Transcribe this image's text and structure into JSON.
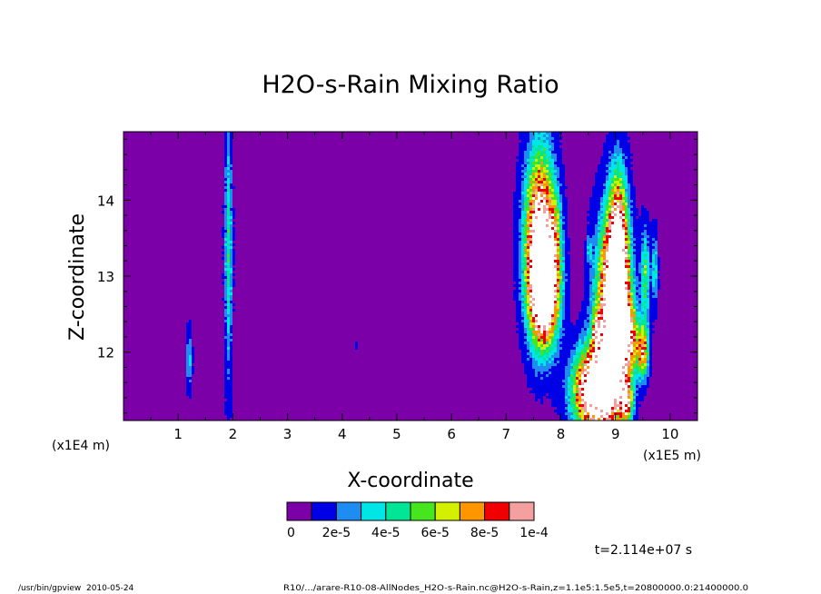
{
  "chart_data": {
    "type": "heatmap",
    "title": "H2O-s-Rain Mixing Ratio",
    "xlabel": "X-coordinate",
    "ylabel": "Z-coordinate",
    "x_unit": "(x1E5 m)",
    "y_unit": "(x1E4 m)",
    "x_ticks": [
      "1",
      "2",
      "3",
      "4",
      "5",
      "6",
      "7",
      "8",
      "9",
      "10"
    ],
    "y_ticks": [
      "12",
      "13",
      "14"
    ],
    "xlim": [
      0,
      10.5
    ],
    "ylim": [
      11.1,
      14.9
    ],
    "background_value": 0,
    "colorbar": {
      "colors": [
        "#7b00a8",
        "#0000e6",
        "#1e8cf0",
        "#00e6e6",
        "#00e696",
        "#46e61e",
        "#d2f000",
        "#ff9600",
        "#f00000",
        "#f5a0a0"
      ],
      "labels": [
        "0",
        "2e-5",
        "4e-5",
        "6e-5",
        "8e-5",
        "1e-4"
      ]
    },
    "saturated_color": "#ffffff",
    "features": [
      {
        "x": 1.92,
        "y": 13.35,
        "dx": 0.05,
        "dy": 1.25,
        "peak": 0.45
      },
      {
        "x": 1.2,
        "y": 11.9,
        "dx": 0.04,
        "dy": 0.28,
        "peak": 0.35
      },
      {
        "x": 4.25,
        "y": 12.08,
        "dx": 0.02,
        "dy": 0.05,
        "peak": 0.15
      },
      {
        "x": 7.62,
        "y": 13.45,
        "dx": 0.2,
        "dy": 0.85,
        "peak": 1.25
      },
      {
        "x": 7.72,
        "y": 12.8,
        "dx": 0.18,
        "dy": 0.45,
        "peak": 1.1
      },
      {
        "x": 7.9,
        "y": 13.6,
        "dx": 0.08,
        "dy": 0.35,
        "peak": 0.3
      },
      {
        "x": 8.95,
        "y": 12.5,
        "dx": 0.22,
        "dy": 0.9,
        "peak": 1.3
      },
      {
        "x": 8.6,
        "y": 11.5,
        "dx": 0.28,
        "dy": 0.4,
        "peak": 1.3
      },
      {
        "x": 9.05,
        "y": 13.2,
        "dx": 0.12,
        "dy": 0.8,
        "peak": 1.0
      },
      {
        "x": 9.5,
        "y": 12.0,
        "dx": 0.08,
        "dy": 0.25,
        "peak": 0.8
      },
      {
        "x": 9.55,
        "y": 13.0,
        "dx": 0.06,
        "dy": 0.45,
        "peak": 0.5
      },
      {
        "x": 9.72,
        "y": 13.1,
        "dx": 0.04,
        "dy": 0.35,
        "peak": 0.4
      },
      {
        "x": 9.2,
        "y": 11.35,
        "dx": 0.08,
        "dy": 0.2,
        "peak": 0.7
      },
      {
        "x": 8.65,
        "y": 12.3,
        "dx": 0.05,
        "dy": 0.15,
        "peak": 0.5
      },
      {
        "x": 8.52,
        "y": 13.35,
        "dx": 0.03,
        "dy": 0.12,
        "peak": 0.3
      },
      {
        "x": 9.25,
        "y": 12.2,
        "dx": 0.1,
        "dy": 0.3,
        "peak": 0.7
      }
    ]
  },
  "time_label": "t=2.114e+07 s",
  "footer_left": "/usr/bin/gpview  2010-05-24",
  "footer_right": "R10/.../arare-R10-08-AllNodes_H2O-s-Rain.nc@H2O-s-Rain,z=1.1e5:1.5e5,t=20800000.0:21400000.0"
}
